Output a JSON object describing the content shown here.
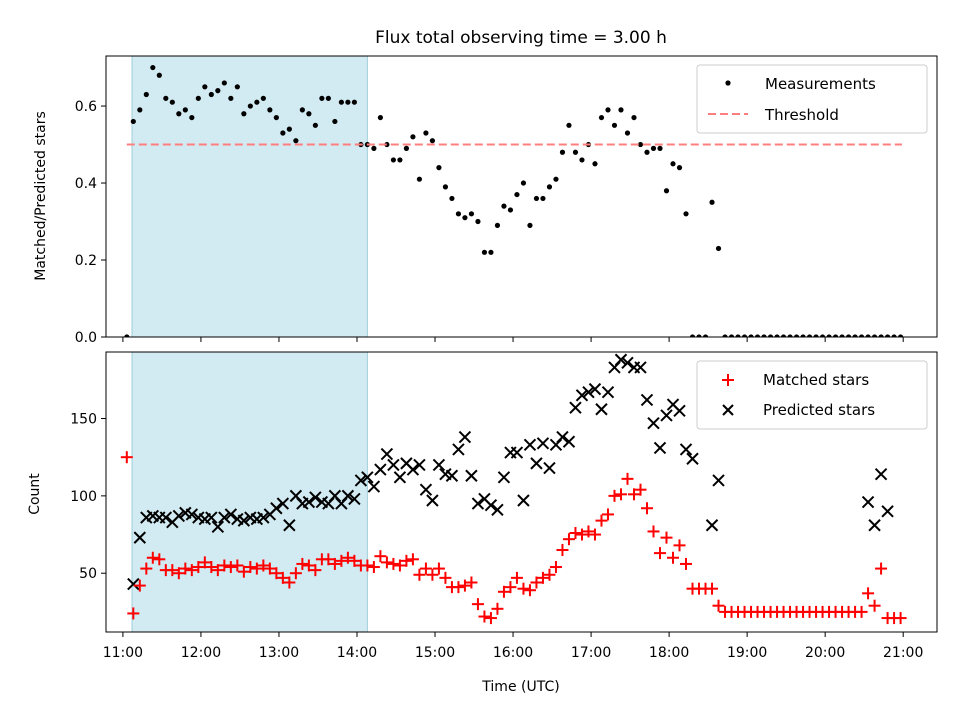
{
  "chart_data": [
    {
      "type": "scatter",
      "title": "Flux total observing time = 3.00 h",
      "ylabel": "Matched/Predicted stars",
      "xlabel": "",
      "xlim": [
        "10:47",
        "21:26"
      ],
      "ylim": [
        0,
        0.73
      ],
      "yticks": [
        "0.0",
        "0.2",
        "0.4",
        "0.6"
      ],
      "ytick_values": [
        0,
        0.2,
        0.4,
        0.6
      ],
      "shaded_span": {
        "start": "11:07",
        "end": "14:08",
        "color": "#add8e6"
      },
      "threshold": {
        "name": "Threshold",
        "value": 0.5,
        "from": "11:03",
        "to": "20:59",
        "color": "#ff7f7f"
      },
      "legend": {
        "placement": "top-right",
        "entries": [
          "Measurements",
          "Threshold"
        ]
      },
      "series": [
        {
          "name": "Measurements",
          "marker": "dot",
          "color": "#000000",
          "x": [
            "11:03",
            "11:08",
            "11:13",
            "11:18",
            "11:23",
            "11:28",
            "11:33",
            "11:38",
            "11:43",
            "11:48",
            "11:53",
            "11:58",
            "12:03",
            "12:08",
            "12:13",
            "12:18",
            "12:23",
            "12:28",
            "12:33",
            "12:38",
            "12:43",
            "12:48",
            "12:53",
            "12:58",
            "13:03",
            "13:08",
            "13:13",
            "13:18",
            "13:23",
            "13:28",
            "13:33",
            "13:38",
            "13:43",
            "13:48",
            "13:53",
            "13:58",
            "14:03",
            "14:08",
            "14:13",
            "14:18",
            "14:23",
            "14:28",
            "14:33",
            "14:38",
            "14:43",
            "14:48",
            "14:53",
            "14:58",
            "15:03",
            "15:08",
            "15:13",
            "15:18",
            "15:23",
            "15:28",
            "15:33",
            "15:38",
            "15:43",
            "15:48",
            "15:53",
            "15:58",
            "16:03",
            "16:08",
            "16:13",
            "16:18",
            "16:23",
            "16:28",
            "16:33",
            "16:38",
            "16:43",
            "16:48",
            "16:53",
            "16:58",
            "17:03",
            "17:08",
            "17:13",
            "17:18",
            "17:23",
            "17:28",
            "17:33",
            "17:38",
            "17:43",
            "17:48",
            "17:53",
            "17:58",
            "18:03",
            "18:08",
            "18:13",
            "18:18",
            "18:23",
            "18:28",
            "18:33",
            "18:38",
            "18:43",
            "18:48",
            "18:53",
            "18:58",
            "19:03",
            "19:08",
            "19:13",
            "19:18",
            "19:23",
            "19:28",
            "19:33",
            "19:38",
            "19:43",
            "19:48",
            "19:53",
            "19:58",
            "20:03",
            "20:08",
            "20:13",
            "20:18",
            "20:23",
            "20:28",
            "20:33",
            "20:38",
            "20:43",
            "20:48",
            "20:53",
            "20:58"
          ],
          "values": [
            0.0,
            0.56,
            0.59,
            0.63,
            0.7,
            0.68,
            0.62,
            0.61,
            0.58,
            0.59,
            0.57,
            0.62,
            0.65,
            0.63,
            0.64,
            0.66,
            0.62,
            0.65,
            0.58,
            0.6,
            0.61,
            0.62,
            0.59,
            0.57,
            0.53,
            0.54,
            0.51,
            0.59,
            0.58,
            0.55,
            0.62,
            0.62,
            0.56,
            0.61,
            0.61,
            0.61,
            0.5,
            0.5,
            0.49,
            0.57,
            0.5,
            0.46,
            0.46,
            0.49,
            0.52,
            0.41,
            0.53,
            0.51,
            0.44,
            0.39,
            0.36,
            0.32,
            0.31,
            0.32,
            0.3,
            0.22,
            0.22,
            0.29,
            0.34,
            0.33,
            0.37,
            0.4,
            0.29,
            0.36,
            0.36,
            0.39,
            0.41,
            0.48,
            0.55,
            0.48,
            0.46,
            0.5,
            0.45,
            0.57,
            0.59,
            0.55,
            0.59,
            0.53,
            0.57,
            0.5,
            0.48,
            0.49,
            0.49,
            0.38,
            0.45,
            0.44,
            0.32,
            0.0,
            0.0,
            0.0,
            0.35,
            0.23,
            0.0,
            0.0,
            0.0,
            0.0,
            0.0,
            0.0,
            0.0,
            0.0,
            0.0,
            0.0,
            0.0,
            0.0,
            0.0,
            0.0,
            0.0,
            0.0,
            0.0,
            0.0,
            0.0,
            0.0,
            0.0,
            0.0,
            0.0,
            0.0,
            0.0,
            0.0,
            0.0,
            0.0
          ]
        }
      ]
    },
    {
      "type": "scatter",
      "title": "",
      "ylabel": "Count",
      "xlabel": "Time (UTC)",
      "xlim": [
        "10:47",
        "21:26"
      ],
      "ylim": [
        12,
        193
      ],
      "yticks": [
        "50",
        "100",
        "150"
      ],
      "ytick_values": [
        50,
        100,
        150
      ],
      "xticks": [
        "11:00",
        "12:00",
        "13:00",
        "14:00",
        "15:00",
        "16:00",
        "17:00",
        "18:00",
        "19:00",
        "20:00",
        "21:00"
      ],
      "shaded_span": {
        "start": "11:07",
        "end": "14:08",
        "color": "#add8e6"
      },
      "legend": {
        "placement": "top-right",
        "entries": [
          "Matched stars",
          "Predicted stars"
        ]
      },
      "series": [
        {
          "name": "Matched stars",
          "marker": "plus",
          "color": "#ff0000",
          "x": [
            "11:03",
            "11:08",
            "11:13",
            "11:18",
            "11:23",
            "11:28",
            "11:33",
            "11:38",
            "11:43",
            "11:48",
            "11:53",
            "11:58",
            "12:03",
            "12:08",
            "12:13",
            "12:18",
            "12:23",
            "12:28",
            "12:33",
            "12:38",
            "12:43",
            "12:48",
            "12:53",
            "12:58",
            "13:03",
            "13:08",
            "13:13",
            "13:18",
            "13:23",
            "13:28",
            "13:33",
            "13:38",
            "13:43",
            "13:48",
            "13:53",
            "13:58",
            "14:03",
            "14:08",
            "14:13",
            "14:18",
            "14:23",
            "14:28",
            "14:33",
            "14:38",
            "14:43",
            "14:48",
            "14:53",
            "14:58",
            "15:03",
            "15:08",
            "15:13",
            "15:18",
            "15:23",
            "15:28",
            "15:33",
            "15:38",
            "15:43",
            "15:48",
            "15:53",
            "15:58",
            "16:03",
            "16:08",
            "16:13",
            "16:18",
            "16:23",
            "16:28",
            "16:33",
            "16:38",
            "16:43",
            "16:48",
            "16:53",
            "16:58",
            "17:03",
            "17:08",
            "17:13",
            "17:18",
            "17:23",
            "17:28",
            "17:33",
            "17:38",
            "17:43",
            "17:48",
            "17:53",
            "17:58",
            "18:03",
            "18:08",
            "18:13",
            "18:18",
            "18:23",
            "18:28",
            "18:33",
            "18:38",
            "18:43",
            "18:48",
            "18:53",
            "18:58",
            "19:03",
            "19:08",
            "19:13",
            "19:18",
            "19:23",
            "19:28",
            "19:33",
            "19:38",
            "19:43",
            "19:48",
            "19:53",
            "19:58",
            "20:03",
            "20:08",
            "20:13",
            "20:18",
            "20:23",
            "20:28",
            "20:33",
            "20:38",
            "20:43",
            "20:48",
            "20:53",
            "20:58"
          ],
          "values": [
            125,
            24,
            42,
            53,
            60,
            59,
            52,
            52,
            50,
            53,
            52,
            54,
            57,
            54,
            52,
            55,
            54,
            55,
            51,
            54,
            53,
            55,
            53,
            50,
            47,
            44,
            50,
            56,
            55,
            52,
            59,
            59,
            56,
            58,
            60,
            58,
            55,
            55,
            54,
            61,
            57,
            56,
            55,
            58,
            59,
            49,
            53,
            49,
            53,
            47,
            41,
            41,
            42,
            44,
            30,
            22,
            21,
            27,
            38,
            41,
            47,
            40,
            39,
            44,
            47,
            49,
            54,
            65,
            72,
            76,
            75,
            77,
            75,
            84,
            88,
            100,
            101,
            111,
            101,
            104,
            92,
            77,
            63,
            73,
            60,
            68,
            56,
            40,
            40,
            40,
            40,
            29,
            25,
            25,
            25,
            25,
            25,
            25,
            25,
            25,
            25,
            25,
            25,
            25,
            25,
            25,
            25,
            25,
            25,
            25,
            25,
            25,
            25,
            25,
            37,
            29,
            53,
            21,
            21,
            21
          ]
        },
        {
          "name": "Predicted stars",
          "marker": "x",
          "color": "#000000",
          "x": [
            "11:08",
            "11:13",
            "11:18",
            "11:23",
            "11:28",
            "11:33",
            "11:38",
            "11:43",
            "11:48",
            "11:53",
            "11:58",
            "12:03",
            "12:08",
            "12:13",
            "12:18",
            "12:23",
            "12:28",
            "12:33",
            "12:38",
            "12:43",
            "12:48",
            "12:53",
            "12:58",
            "13:03",
            "13:08",
            "13:13",
            "13:18",
            "13:23",
            "13:28",
            "13:33",
            "13:38",
            "13:43",
            "13:48",
            "13:53",
            "13:58",
            "14:03",
            "14:08",
            "14:13",
            "14:18",
            "14:23",
            "14:28",
            "14:33",
            "14:38",
            "14:43",
            "14:48",
            "14:53",
            "14:58",
            "15:03",
            "15:08",
            "15:13",
            "15:18",
            "15:23",
            "15:28",
            "15:33",
            "15:38",
            "15:43",
            "15:48",
            "15:53",
            "15:58",
            "16:03",
            "16:08",
            "16:13",
            "16:18",
            "16:23",
            "16:28",
            "16:33",
            "16:38",
            "16:43",
            "16:48",
            "16:53",
            "16:58",
            "17:03",
            "17:08",
            "17:13",
            "17:18",
            "17:23",
            "17:28",
            "17:33",
            "17:38",
            "17:43",
            "17:48",
            "17:53",
            "17:58",
            "18:03",
            "18:08",
            "18:13",
            "18:18",
            "18:33",
            "18:38",
            "20:33",
            "20:38",
            "20:43",
            "20:48"
          ],
          "values": [
            43,
            73,
            86,
            87,
            86,
            86,
            83,
            87,
            89,
            88,
            86,
            85,
            86,
            80,
            86,
            88,
            85,
            84,
            86,
            85,
            86,
            88,
            92,
            95,
            81,
            100,
            95,
            96,
            99,
            96,
            95,
            100,
            95,
            100,
            98,
            110,
            112,
            106,
            117,
            127,
            120,
            112,
            121,
            117,
            120,
            104,
            97,
            120,
            114,
            113,
            130,
            138,
            113,
            95,
            98,
            94,
            91,
            112,
            128,
            128,
            97,
            133,
            121,
            134,
            118,
            133,
            138,
            135,
            157,
            165,
            167,
            169,
            156,
            167,
            183,
            188,
            186,
            183,
            183,
            162,
            147,
            131,
            152,
            159,
            155,
            130,
            124,
            81,
            110,
            96,
            81,
            114,
            90
          ]
        }
      ]
    }
  ]
}
